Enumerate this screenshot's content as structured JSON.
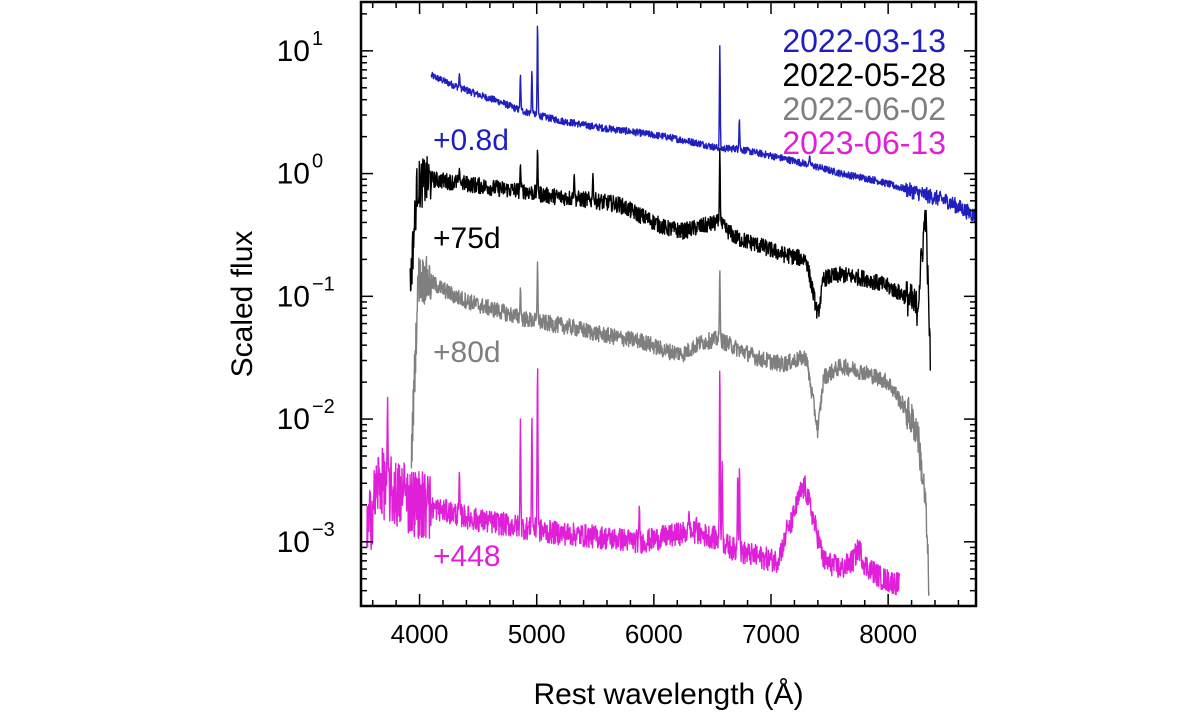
{
  "chart_data": {
    "type": "line",
    "title": "",
    "xlabel": "Rest wavelength (Å)",
    "ylabel": "Scaled flux",
    "x_scale": "linear",
    "y_scale": "log",
    "xlim": [
      3500,
      8750
    ],
    "ylim": [
      0.0003,
      25
    ],
    "x_ticks": [
      4000,
      5000,
      6000,
      7000,
      8000
    ],
    "x_tick_labels": [
      "4000",
      "5000",
      "6000",
      "7000",
      "8000"
    ],
    "y_ticks": [
      0.001,
      0.01,
      0.1,
      1,
      10
    ],
    "y_tick_labels": [
      {
        "base": "10",
        "exp": "−3"
      },
      {
        "base": "10",
        "exp": "−2"
      },
      {
        "base": "10",
        "exp": "−1"
      },
      {
        "base": "10",
        "exp": "0"
      },
      {
        "base": "10",
        "exp": "1"
      }
    ],
    "grid": false,
    "legend_position": "top-right",
    "series": [
      {
        "name": "2022-03-13",
        "annotation": "+0.8d",
        "color": "#1f1fbf",
        "x": [
          4100,
          4300,
          4500,
          4700,
          4850,
          5000,
          5200,
          5500,
          5800,
          6100,
          6400,
          6563,
          6700,
          7000,
          7300,
          7600,
          7900,
          8200,
          8500,
          8750
        ],
        "y": [
          6.3,
          5.2,
          4.4,
          3.8,
          3.3,
          3.0,
          2.7,
          2.4,
          2.2,
          2.0,
          1.75,
          1.6,
          1.6,
          1.4,
          1.2,
          1.0,
          0.88,
          0.72,
          0.6,
          0.45
        ],
        "lines": [
          {
            "x": 4340,
            "peak": 6.5
          },
          {
            "x": 4861,
            "peak": 6.5
          },
          {
            "x": 4959,
            "peak": 7.0
          },
          {
            "x": 5007,
            "peak": 17.0
          },
          {
            "x": 6563,
            "peak": 11.0
          },
          {
            "x": 6730,
            "peak": 2.8
          },
          {
            "x": 7330,
            "peak": 1.4
          }
        ]
      },
      {
        "name": "2022-05-28",
        "annotation": "+75d",
        "color": "#000000",
        "x": [
          3920,
          3980,
          4100,
          4300,
          4500,
          4700,
          4900,
          5100,
          5300,
          5500,
          5700,
          5900,
          6100,
          6250,
          6400,
          6550,
          6700,
          6900,
          7100,
          7300,
          7400,
          7450,
          7600,
          7800,
          8000,
          8150,
          8250,
          8320,
          8360
        ],
        "y": [
          0.12,
          0.8,
          0.9,
          0.85,
          0.8,
          0.75,
          0.72,
          0.66,
          0.63,
          0.6,
          0.56,
          0.45,
          0.36,
          0.34,
          0.37,
          0.4,
          0.3,
          0.26,
          0.22,
          0.2,
          0.07,
          0.14,
          0.15,
          0.14,
          0.12,
          0.1,
          0.08,
          0.5,
          0.03
        ],
        "lines": [
          {
            "x": 4340,
            "peak": 1.1
          },
          {
            "x": 4861,
            "peak": 1.2
          },
          {
            "x": 5007,
            "peak": 1.6
          },
          {
            "x": 5320,
            "peak": 1.0
          },
          {
            "x": 5480,
            "peak": 1.0
          },
          {
            "x": 6563,
            "peak": 1.6
          }
        ]
      },
      {
        "name": "2022-06-02",
        "annotation": "+80d",
        "color": "#7f7f7f",
        "x": [
          3930,
          3990,
          4100,
          4300,
          4500,
          4700,
          4900,
          5100,
          5300,
          5500,
          5700,
          5900,
          6100,
          6250,
          6400,
          6550,
          6700,
          6900,
          7100,
          7300,
          7400,
          7450,
          7600,
          7800,
          8000,
          8150,
          8250,
          8320,
          8350
        ],
        "y": [
          0.005,
          0.14,
          0.13,
          0.1,
          0.085,
          0.075,
          0.065,
          0.06,
          0.056,
          0.05,
          0.046,
          0.043,
          0.036,
          0.034,
          0.042,
          0.045,
          0.038,
          0.031,
          0.028,
          0.032,
          0.008,
          0.022,
          0.027,
          0.024,
          0.02,
          0.012,
          0.008,
          0.002,
          0.0004
        ],
        "lines": [
          {
            "x": 4861,
            "peak": 0.12
          },
          {
            "x": 5007,
            "peak": 0.19
          },
          {
            "x": 6563,
            "peak": 0.17
          }
        ]
      },
      {
        "name": "2023-06-13",
        "annotation": "+448",
        "color": "#e020d8",
        "x": [
          3550,
          3650,
          3750,
          3900,
          4100,
          4300,
          4500,
          4700,
          4900,
          5100,
          5300,
          5500,
          5700,
          5900,
          6100,
          6300,
          6500,
          6700,
          6900,
          7050,
          7150,
          7250,
          7290,
          7350,
          7450,
          7600,
          7700,
          7750,
          7800,
          7950,
          8100
        ],
        "y": [
          0.0011,
          0.0032,
          0.0026,
          0.0022,
          0.0019,
          0.0017,
          0.0015,
          0.0014,
          0.0013,
          0.0012,
          0.00115,
          0.0011,
          0.00105,
          0.001,
          0.0011,
          0.0012,
          0.0011,
          0.00085,
          0.00075,
          0.0007,
          0.0012,
          0.0025,
          0.0028,
          0.0017,
          0.0007,
          0.0006,
          0.0007,
          0.0009,
          0.00065,
          0.0005,
          0.00045
        ],
        "lines": [
          {
            "x": 3727,
            "peak": 0.015
          },
          {
            "x": 3869,
            "peak": 0.0045
          },
          {
            "x": 4070,
            "peak": 0.0035
          },
          {
            "x": 4340,
            "peak": 0.0038
          },
          {
            "x": 4861,
            "peak": 0.01
          },
          {
            "x": 4959,
            "peak": 0.011
          },
          {
            "x": 5007,
            "peak": 0.029
          },
          {
            "x": 5876,
            "peak": 0.002
          },
          {
            "x": 6300,
            "peak": 0.0018
          },
          {
            "x": 6363,
            "peak": 0.0016
          },
          {
            "x": 6563,
            "peak": 0.028
          },
          {
            "x": 6583,
            "peak": 0.0045
          },
          {
            "x": 6716,
            "peak": 0.0035
          },
          {
            "x": 6731,
            "peak": 0.0042
          },
          {
            "x": 7135,
            "peak": 0.0015
          }
        ]
      }
    ]
  }
}
